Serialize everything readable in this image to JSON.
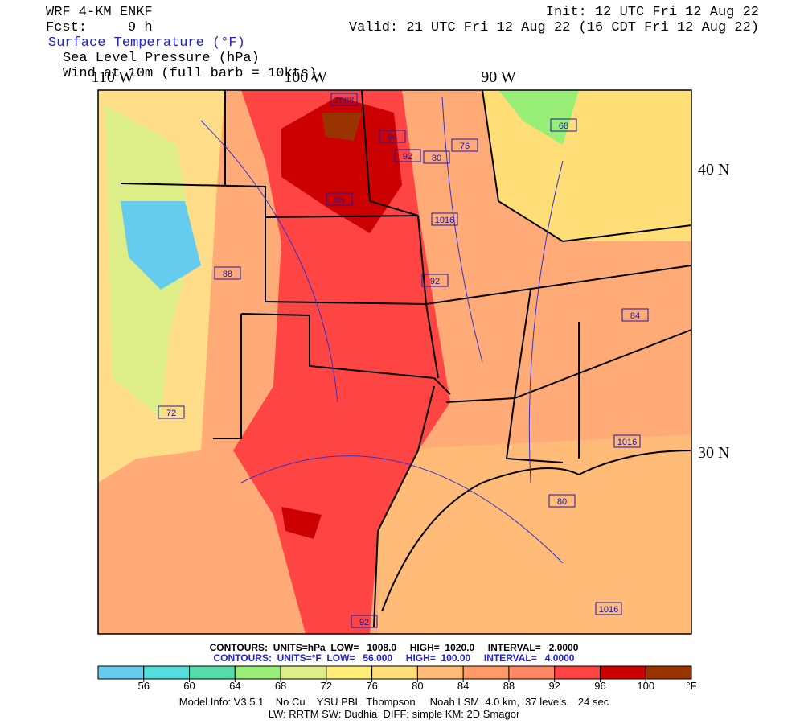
{
  "header": {
    "model": "WRF 4-KM ENKF",
    "init": "Init: 12 UTC Fri 12 Aug 22",
    "fcst": "Fcst:     9 h",
    "valid": "Valid: 21 UTC Fri 12 Aug 22 (16 CDT Fri 12 Aug 22)",
    "fields": [
      "Surface Temperature (°F)",
      "Sea Level Pressure (hPa)",
      "Wind at 10m (full barb = 10kts)"
    ]
  },
  "map": {
    "lon_labels": [
      "110 W",
      "100 W",
      "90 W"
    ],
    "lat_labels": [
      "40 N",
      "30 N"
    ],
    "contour_labels": [
      "1008",
      "96",
      "92",
      "80",
      "76",
      "68",
      "1016",
      "88",
      "92",
      "84",
      "72",
      "1016",
      "80",
      "1016",
      "92",
      "96"
    ]
  },
  "contours": {
    "pressure": "CONTOURS:  UNITS=hPa  LOW=   1008.0     HIGH=  1020.0     INTERVAL=   2.0000",
    "temperature": "CONTOURS:  UNITS=°F  LOW=   56.000     HIGH=  100.00     INTERVAL=   4.0000"
  },
  "colorbar": {
    "lim": [
      52,
      104
    ],
    "ticks": [
      56,
      60,
      64,
      68,
      72,
      76,
      80,
      84,
      88,
      92,
      96,
      100
    ],
    "unit": "°F",
    "colors": [
      "#66ccee",
      "#55dddd",
      "#55ddaa",
      "#99ee77",
      "#ddee88",
      "#ffee77",
      "#ffdd77",
      "#ffbb77",
      "#ff9966",
      "#ff8866",
      "#ff4444",
      "#cc0000",
      "#993300"
    ]
  },
  "footer": {
    "line1": "Model Info: V3.5.1    No Cu    YSU PBL  Thompson     Noah LSM  4.0 km,  37 levels,   24 sec",
    "line2": "LW: RRTM SW: Dudhia  DIFF: simple KM: 2D Smagor"
  }
}
